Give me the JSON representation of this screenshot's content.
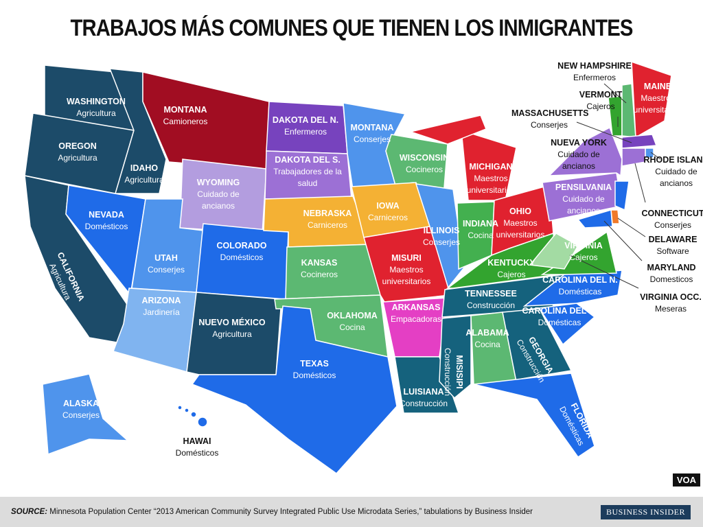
{
  "title": "TRABAJOS MÁS COMUNES QUE TIENEN LOS INMIGRANTES",
  "states": [
    {
      "name": "WASHINGTON",
      "job": "Agricultura",
      "color": "#1c4b69"
    },
    {
      "name": "OREGON",
      "job": "Agricultura",
      "color": "#1c4b69"
    },
    {
      "name": "CALIFORNIA",
      "job": "Agricultura",
      "color": "#1c4b69"
    },
    {
      "name": "IDAHO",
      "job": "Agricultura",
      "color": "#1c4b69"
    },
    {
      "name": "NEVADA",
      "job": "Domésticos",
      "color": "#1f6be8"
    },
    {
      "name": "MONTANA",
      "job": "Camioneros",
      "color": "#a10d22"
    },
    {
      "name": "WYOMING",
      "job": "Cuidado de ancianos",
      "color": "#b39ddf"
    },
    {
      "name": "UTAH",
      "job": "Conserjes",
      "color": "#4f94ec"
    },
    {
      "name": "COLORADO",
      "job": "Domésticos",
      "color": "#1f6be8"
    },
    {
      "name": "ARIZONA",
      "job": "Jardinería",
      "color": "#80b4f0"
    },
    {
      "name": "NUEVO MÉXICO",
      "job": "Agricultura",
      "color": "#1c4b69"
    },
    {
      "name": "DAKOTA DEL N.",
      "job": "Enfermeros",
      "color": "#7743be"
    },
    {
      "name": "DAKOTA DEL S.",
      "job": "Trabajadores de la salud",
      "color": "#9c70d5"
    },
    {
      "name": "NEBRASKA",
      "job": "Carniceros",
      "color": "#f4b134"
    },
    {
      "name": "KANSAS",
      "job": "Cocineros",
      "color": "#5cb872"
    },
    {
      "name": "OKLAHOMA",
      "job": "Cocina",
      "color": "#5cb872"
    },
    {
      "name": "TEXAS",
      "job": "Domésticos",
      "color": "#1f6be8"
    },
    {
      "name": "MONTANA",
      "job": "Conserjes",
      "color": "#4f94ec"
    },
    {
      "name": "WISCONSIN",
      "job": "Cocineros",
      "color": "#5cb872"
    },
    {
      "name": "IOWA",
      "job": "Carniceros",
      "color": "#f4b134"
    },
    {
      "name": "ILLINOIS",
      "job": "Conserjes",
      "color": "#4f94ec"
    },
    {
      "name": "MISURI",
      "job": "Maestros universitarios",
      "color": "#e0222f"
    },
    {
      "name": "ARKANSAS",
      "job": "Empacadoras",
      "color": "#e43fc4"
    },
    {
      "name": "LUISIANA",
      "job": "Construcción",
      "color": "#15627d"
    },
    {
      "name": "MICHIGAN",
      "job": "Maestros universitarios",
      "color": "#e0222f"
    },
    {
      "name": "INDIANA",
      "job": "Cocina",
      "color": "#43b04f"
    },
    {
      "name": "OHIO",
      "job": "Maestros universitarios",
      "color": "#e0222f"
    },
    {
      "name": "KENTUCKY",
      "job": "Cajeros",
      "color": "#33a42f"
    },
    {
      "name": "TENNESSEE",
      "job": "Construcción",
      "color": "#15627d"
    },
    {
      "name": "MISISIPI",
      "job": "Construcción",
      "color": "#15627d"
    },
    {
      "name": "ALABAMA",
      "job": "Cocina",
      "color": "#5cb872"
    },
    {
      "name": "GEORGIA",
      "job": "Construcción",
      "color": "#15627d"
    },
    {
      "name": "CAROLINA DEL N.",
      "job": "Domésticas",
      "color": "#1f6be8"
    },
    {
      "name": "CAROLINA DEL S.",
      "job": "Domésticas",
      "color": "#1f6be8"
    },
    {
      "name": "FLORIDA",
      "job": "Domésticas",
      "color": "#1f6be8"
    },
    {
      "name": "VIRGINIA",
      "job": "Cajeros",
      "color": "#33a42f"
    },
    {
      "name": "VIRGINIA OCC.",
      "job": "Meseras",
      "color": "#a3dba3"
    },
    {
      "name": "PENSILVANIA",
      "job": "Cuidado de ancianos",
      "color": "#9c70d5"
    },
    {
      "name": "NUEVA YORK",
      "job": "Cuidado de ancianos",
      "color": "#9c70d5"
    },
    {
      "name": "VERMONT",
      "job": "Cajeros",
      "color": "#33a42f"
    },
    {
      "name": "NEW HAMPSHIRE",
      "job": "Enfermeros",
      "color": "#5cb872"
    },
    {
      "name": "MAINE",
      "job": "Maestros universitarios",
      "color": "#e0222f"
    },
    {
      "name": "MASSACHUSETTS",
      "job": "Conserjes",
      "color": "#7743be"
    },
    {
      "name": "RHODE ISLAND",
      "job": "Cuidado de ancianos",
      "color": "#4f94ec"
    },
    {
      "name": "CONNECTICUT",
      "job": "Conserjes",
      "color": "#9c70d5"
    },
    {
      "name": "DELAWARE",
      "job": "Software",
      "color": "#f07a2a"
    },
    {
      "name": "MARYLAND",
      "job": "Domesticos",
      "color": "#1f6be8"
    },
    {
      "name": "ALASKA",
      "job": "Conserjes",
      "color": "#4f94ec"
    },
    {
      "name": "HAWAI",
      "job": "Domésticos",
      "color": "#1f6be8"
    }
  ],
  "source": {
    "label": "SOURCE:",
    "text": "Minnesota Population Center “2013 American Community Survey Integrated Public Use Microdata Series,” tabulations by Business Insider"
  },
  "logo": "BUSINESS INSIDER",
  "watermark": "VOA"
}
